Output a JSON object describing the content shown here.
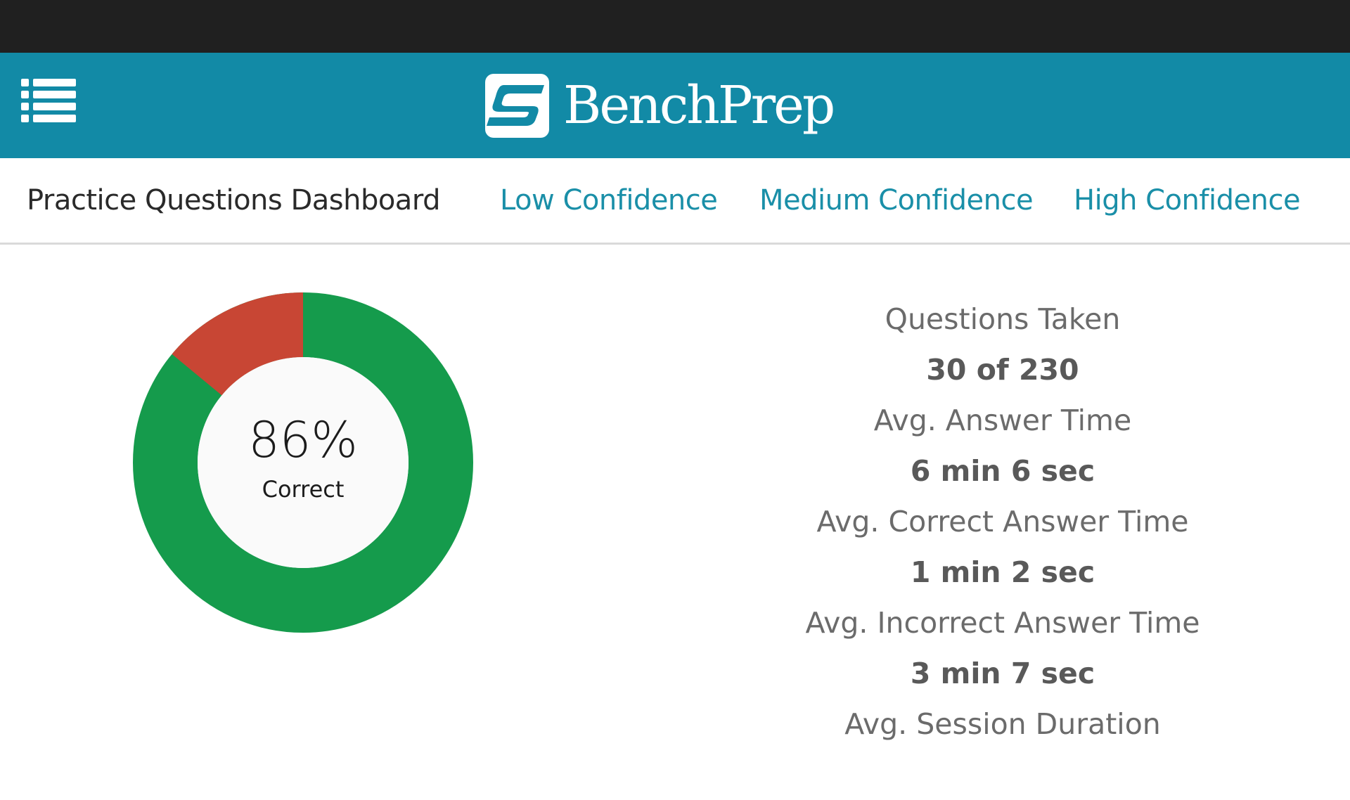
{
  "app": {
    "brand": "BenchPrep"
  },
  "colors": {
    "header_bg": "#128aa6",
    "status_bar": "#202020",
    "accent_link": "#1a8fa8",
    "correct": "#159b4c",
    "incorrect": "#c84634"
  },
  "header": {
    "menu_icon": "list-icon",
    "logo_icon": "benchprep-logo-icon",
    "logo_text": "BenchPrep"
  },
  "nav": {
    "title": "Practice Questions Dashboard",
    "links": [
      {
        "label": "Low Confidence"
      },
      {
        "label": "Medium Confidence"
      },
      {
        "label": "High Confidence"
      }
    ]
  },
  "donut": {
    "percent_label": "86%",
    "caption": "Correct"
  },
  "stats": [
    {
      "label": "Questions Taken",
      "value": "30 of 230"
    },
    {
      "label": "Avg. Answer Time",
      "value": "6 min 6 sec"
    },
    {
      "label": "Avg. Correct Answer Time",
      "value": "1 min 2 sec"
    },
    {
      "label": "Avg. Incorrect Answer Time",
      "value": "3 min 7 sec"
    },
    {
      "label": "Avg. Session Duration",
      "value": ""
    }
  ],
  "chart_data": {
    "type": "pie",
    "title": "",
    "categories": [
      "Correct",
      "Incorrect"
    ],
    "values": [
      86,
      14
    ],
    "colors": [
      "#159b4c",
      "#c84634"
    ],
    "center_text": "86% Correct",
    "donut": true
  }
}
